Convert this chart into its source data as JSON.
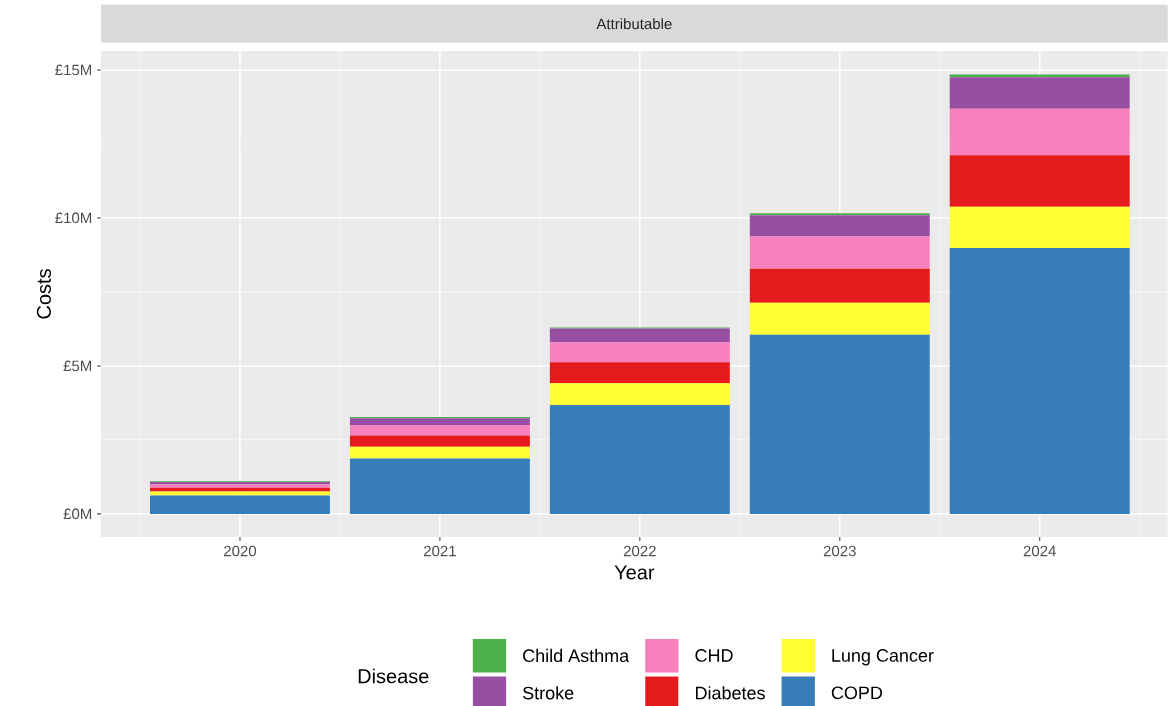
{
  "chart_data": {
    "type": "bar",
    "title": "Attributable",
    "xlabel": "Year",
    "ylabel": "Costs",
    "legend_title": "Disease",
    "categories": [
      "2020",
      "2021",
      "2022",
      "2023",
      "2024"
    ],
    "stacked": true,
    "series": [
      {
        "name": "COPD",
        "color": "#377eb8",
        "values": [
          0.62,
          1.87,
          3.68,
          6.05,
          8.98
        ]
      },
      {
        "name": "Lung Cancer",
        "color": "#ffff33",
        "values": [
          0.14,
          0.4,
          0.73,
          1.08,
          1.4
        ]
      },
      {
        "name": "Diabetes",
        "color": "#e41a1c",
        "values": [
          0.12,
          0.38,
          0.71,
          1.15,
          1.74
        ]
      },
      {
        "name": "CHD",
        "color": "#f781bf",
        "values": [
          0.11,
          0.35,
          0.68,
          1.09,
          1.57
        ]
      },
      {
        "name": "Stroke",
        "color": "#984ea3",
        "values": [
          0.09,
          0.23,
          0.46,
          0.72,
          1.06
        ]
      },
      {
        "name": "Child Asthma",
        "color": "#4daf4a",
        "values": [
          0.02,
          0.04,
          0.04,
          0.07,
          0.1
        ]
      }
    ],
    "ylim": [
      -0.78,
      15.64
    ],
    "yticks": [
      {
        "value": 0,
        "label": "£0M"
      },
      {
        "value": 5,
        "label": "£5M"
      },
      {
        "value": 10,
        "label": "£10M"
      },
      {
        "value": 15,
        "label": "£15M"
      }
    ],
    "grid": true,
    "legend": "bottom"
  }
}
